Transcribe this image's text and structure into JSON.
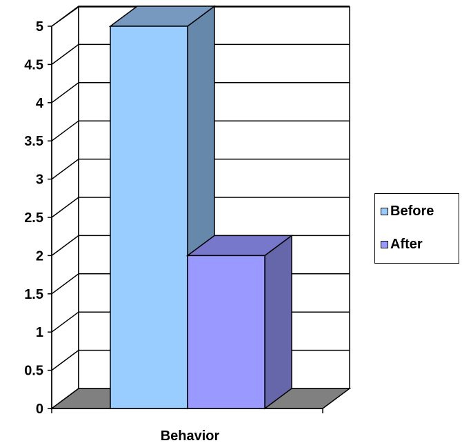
{
  "chart_data": {
    "type": "bar",
    "categories": [
      "Behavior"
    ],
    "series": [
      {
        "name": "Before",
        "values": [
          5
        ],
        "color": "#99CCFF",
        "side_color": "#6688AA",
        "top_color": "#7799C0"
      },
      {
        "name": "After",
        "values": [
          2
        ],
        "color": "#9999FF",
        "side_color": "#6666AA",
        "top_color": "#7777CC"
      }
    ],
    "ylim": [
      0,
      5
    ],
    "yticks": [
      "0",
      "0.5",
      "1",
      "1.5",
      "2",
      "2.5",
      "3",
      "3.5",
      "4",
      "4.5",
      "5"
    ],
    "grid": true,
    "legend_position": "right",
    "three_d": true
  }
}
